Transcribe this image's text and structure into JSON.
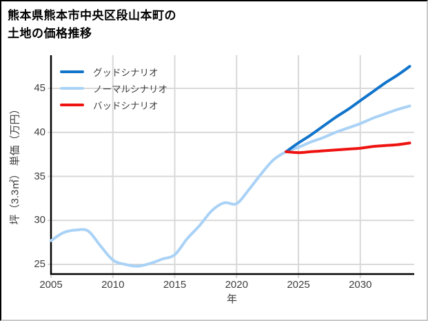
{
  "window": {
    "title_line1": "熊本県熊本市中央区段山本町の",
    "title_line2": "土地の価格推移"
  },
  "chart_data": {
    "type": "line",
    "title": "熊本県熊本市中央区段山本町の土地の価格推移",
    "xlabel": "年",
    "ylabel": "坪（3.3㎡） 単価（万円）",
    "x_ticks": [
      2005,
      2010,
      2015,
      2020,
      2025,
      2030
    ],
    "y_ticks": [
      25,
      30,
      35,
      40,
      45
    ],
    "xlim": [
      2005,
      2034.2
    ],
    "ylim": [
      23.9,
      48.9
    ],
    "grid": true,
    "legend_position": "upper-left",
    "series": [
      {
        "id": "good",
        "name": "グッドシナリオ",
        "color": "#1174cb",
        "x": [
          2024,
          2025,
          2026,
          2027,
          2028,
          2029,
          2030,
          2031,
          2032,
          2033,
          2034
        ],
        "values": [
          37.8,
          38.8,
          39.7,
          40.7,
          41.7,
          42.6,
          43.6,
          44.6,
          45.6,
          46.5,
          47.5
        ]
      },
      {
        "id": "normal",
        "name": "ノーマルシナリオ",
        "color": "#a9d2f6",
        "x": [
          2005,
          2006,
          2007,
          2008,
          2009,
          2010,
          2011,
          2012,
          2013,
          2014,
          2015,
          2016,
          2017,
          2018,
          2019,
          2020,
          2021,
          2022,
          2023,
          2024,
          2025,
          2026,
          2027,
          2028,
          2029,
          2030,
          2031,
          2032,
          2033,
          2034
        ],
        "values": [
          27.7,
          28.6,
          28.9,
          28.8,
          27.1,
          25.5,
          25.0,
          24.8,
          25.1,
          25.6,
          26.1,
          27.9,
          29.4,
          31.1,
          32.0,
          31.9,
          33.5,
          35.3,
          36.9,
          37.8,
          38.3,
          38.9,
          39.4,
          40.0,
          40.5,
          41.0,
          41.6,
          42.1,
          42.6,
          43.0
        ]
      },
      {
        "id": "bad",
        "name": "バッドシナリオ",
        "color": "#ee1310",
        "x": [
          2024,
          2025,
          2026,
          2027,
          2028,
          2029,
          2030,
          2031,
          2032,
          2033,
          2034
        ],
        "values": [
          37.8,
          37.7,
          37.8,
          37.9,
          38.0,
          38.1,
          38.2,
          38.4,
          38.5,
          38.6,
          38.8
        ]
      }
    ],
    "theme": {
      "grid_color": "#d8d8d8",
      "spine_color": "#000000",
      "tick_label_color": "#3d3d3d",
      "title_color": "#000000",
      "background": "#ffffff"
    }
  }
}
